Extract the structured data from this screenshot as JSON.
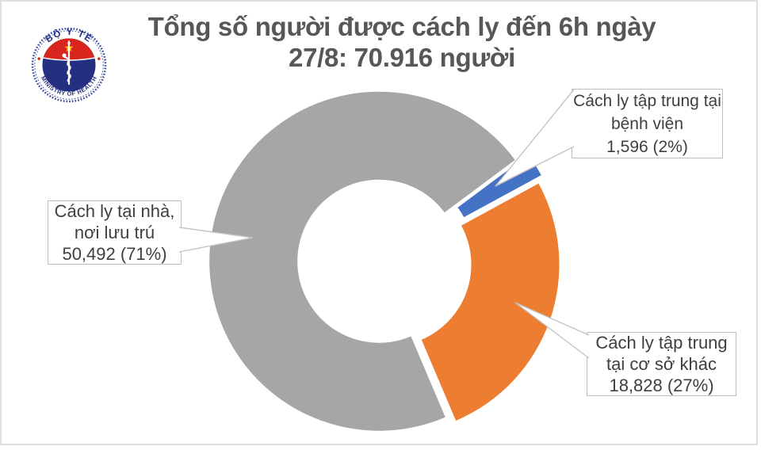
{
  "page": {
    "background": "#ffffff",
    "border_color": "#e0e0e0"
  },
  "logo": {
    "top_text": "BỘ Y TẾ",
    "bottom_text": "MINISTRY OF HEALTH",
    "navy": "#252F82",
    "red": "#D8251D",
    "yellow": "#FFD100",
    "ring_blue": "#3F4FA0"
  },
  "title": {
    "text": "Tổng số người được cách ly đến 6h ngày 27/8: 70.916 người",
    "lines": [
      "Tổng số người được cách ly đến 6h ngày",
      "27/8: 70.916 người"
    ],
    "color": "#575757"
  },
  "chart_data": {
    "type": "pie",
    "subtype": "exploded-doughnut",
    "title": "Tổng số người được cách ly đến 6h ngày 27/8: 70.916 người",
    "total": 70916,
    "total_display": "70.916",
    "start_bearing_deg": 157,
    "legend": "none",
    "labels_style": "callout-boxes",
    "slices": [
      {
        "label": "Cách ly tại nhà, nơi lưu trú",
        "value": 50492,
        "percent": 71,
        "value_display": "50,492 (71%)",
        "color": "#A6A6A6",
        "callout_lines": [
          "Cách ly tại nhà,",
          "nơi lưu trú",
          "50,492 (71%)"
        ]
      },
      {
        "label": "Cách ly tập trung tại bệnh viện",
        "value": 1596,
        "percent": 2,
        "value_display": "1,596 (2%)",
        "color": "#4472C4",
        "callout_lines": [
          "Cách ly tập trung tại",
          "bệnh viện",
          "1,596 (2%)"
        ]
      },
      {
        "label": "Cách ly tập trung tại cơ sở khác",
        "value": 18828,
        "percent": 27,
        "value_display": "18,828 (27%)",
        "color": "#ED7D31",
        "callout_lines": [
          "Cách ly tập trung",
          "tại cơ sở khác",
          "18,828 (27%)"
        ]
      }
    ]
  }
}
